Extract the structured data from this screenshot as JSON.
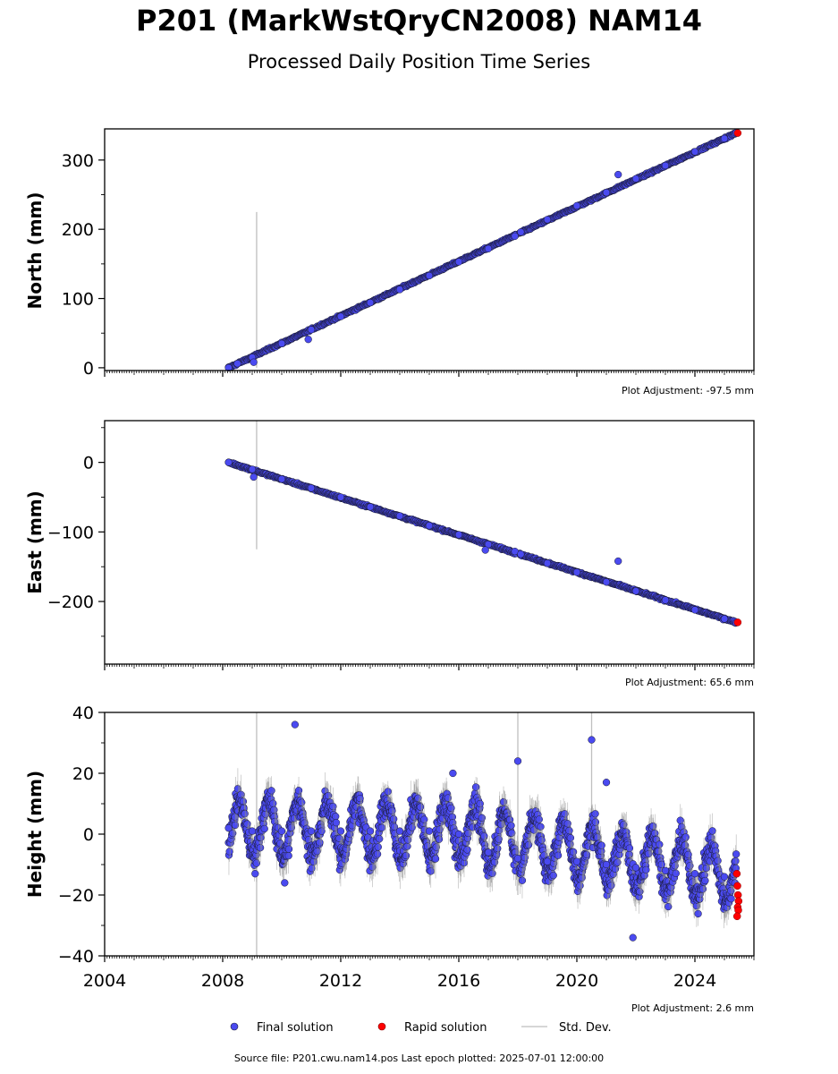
{
  "title": "P201 (MarkWstQryCN2008) NAM14",
  "subtitle": "Processed Daily Position Time Series",
  "source_line": "Source file: P201.cwu.nam14.pos  Last epoch plotted: 2025-07-01 12:00:00",
  "legend": {
    "final": "Final solution",
    "rapid": "Rapid solution",
    "std": "Std. Dev."
  },
  "colors": {
    "final": "#4a4af0",
    "rapid": "#ff0000",
    "std": "#b0b0b0",
    "marker_edge": "#1a1a2e"
  },
  "chart_data": [
    {
      "type": "scatter",
      "ylabel": "North (mm)",
      "ylim": [
        -4,
        345
      ],
      "yticks": [
        0,
        100,
        200,
        300
      ],
      "yticklabels": [
        "0",
        "100",
        "200",
        "300"
      ],
      "xlim": [
        2004.0,
        2026.0
      ],
      "adjustment": "Plot Adjustment: -97.5 mm",
      "trend": {
        "x": [
          2008.2,
          2025.4
        ],
        "y": [
          0,
          339
        ]
      },
      "series": [
        {
          "name": "Final solution",
          "x": [
            2008.2,
            2008.5,
            2009.0,
            2010.0,
            2011.0,
            2012.0,
            2013.0,
            2014.0,
            2015.0,
            2016.0,
            2017.0,
            2017.9,
            2018.1,
            2019.0,
            2020.0,
            2021.0,
            2022.0,
            2023.0,
            2024.0,
            2025.0
          ],
          "y": [
            0,
            6,
            15,
            35,
            55,
            74,
            94,
            113,
            133,
            153,
            172,
            190,
            196,
            214,
            234,
            253,
            273,
            292,
            312,
            331
          ]
        },
        {
          "name": "Rapid solution",
          "x": [
            2025.45
          ],
          "y": [
            339
          ]
        }
      ],
      "outliers": {
        "x": [
          2009.05,
          2010.9,
          2021.4
        ],
        "y": [
          8,
          41,
          279
        ]
      },
      "stddev_spikes": [
        {
          "x": 2009.15,
          "y_low": 0,
          "y_high": 225
        }
      ]
    },
    {
      "type": "scatter",
      "ylabel": "East (mm)",
      "ylim": [
        -290,
        60
      ],
      "yticks": [
        0,
        -100,
        -200
      ],
      "yticklabels": [
        "0",
        "−100",
        "−200"
      ],
      "xlim": [
        2004.0,
        2026.0
      ],
      "adjustment": "Plot Adjustment: 65.6 mm",
      "trend": {
        "x": [
          2008.2,
          2025.4
        ],
        "y": [
          0,
          -230
        ]
      },
      "series": [
        {
          "name": "Final solution",
          "x": [
            2008.2,
            2009.0,
            2010.0,
            2011.0,
            2012.0,
            2013.0,
            2014.0,
            2015.0,
            2016.0,
            2017.0,
            2017.9,
            2018.1,
            2019.0,
            2020.0,
            2021.0,
            2022.0,
            2023.0,
            2024.0,
            2025.0
          ],
          "y": [
            0,
            -10,
            -24,
            -37,
            -50,
            -64,
            -77,
            -91,
            -104,
            -118,
            -128,
            -132,
            -145,
            -158,
            -172,
            -185,
            -198,
            -212,
            -225
          ]
        },
        {
          "name": "Rapid solution",
          "x": [
            2025.45
          ],
          "y": [
            -230
          ]
        }
      ],
      "outliers": {
        "x": [
          2009.05,
          2016.9,
          2021.4
        ],
        "y": [
          -21,
          -126,
          -142
        ]
      },
      "stddev_spikes": [
        {
          "x": 2009.15,
          "y_low": -125,
          "y_high": 60
        }
      ]
    },
    {
      "type": "scatter",
      "ylabel": "Height (mm)",
      "ylim": [
        -40,
        40
      ],
      "yticks": [
        -40,
        -20,
        0,
        20,
        40
      ],
      "yticklabels": [
        "−40",
        "−20",
        "0",
        "20",
        "40"
      ],
      "xlim": [
        2004.0,
        2026.0
      ],
      "xticks": [
        2004,
        2008,
        2012,
        2016,
        2020,
        2024
      ],
      "xticklabels": [
        "2004",
        "2008",
        "2012",
        "2016",
        "2020",
        "2024"
      ],
      "adjustment": "Plot Adjustment: 2.6 mm",
      "trend": {
        "x": [
          2008.2,
          2016.0,
          2025.4
        ],
        "y": [
          2,
          1,
          -14
        ]
      },
      "seasonal_amplitude": 9,
      "series": [
        {
          "name": "Final solution",
          "x": [
            2008.2,
            2009.0,
            2010.0,
            2011.0,
            2012.0,
            2013.0,
            2014.0,
            2015.0,
            2016.0,
            2017.0,
            2018.0,
            2019.0,
            2020.0,
            2021.0,
            2022.0,
            2023.0,
            2024.0,
            2025.0
          ],
          "y": [
            2,
            1,
            1,
            1,
            1,
            1,
            1,
            1,
            0,
            -6,
            -8,
            -9,
            -9,
            -10,
            -11,
            -12,
            -13,
            -14
          ]
        },
        {
          "name": "Rapid solution",
          "x": [
            2025.42,
            2025.44,
            2025.46,
            2025.48,
            2025.45,
            2025.47,
            2025.43
          ],
          "y": [
            -13,
            -17,
            -20,
            -22,
            -24,
            -25,
            -27
          ]
        }
      ],
      "outliers": {
        "x": [
          2010.45,
          2018.0,
          2020.5,
          2009.1,
          2021.0,
          2021.9,
          2015.8,
          2010.1
        ],
        "y": [
          36,
          24,
          31,
          -13,
          17,
          -34,
          20,
          -16
        ]
      },
      "stddev_spikes": [
        {
          "x": 2009.15,
          "y_low": -40,
          "y_high": 40
        },
        {
          "x": 2018.0,
          "y_low": -20,
          "y_high": 40
        },
        {
          "x": 2020.5,
          "y_low": 0,
          "y_high": 40
        }
      ]
    }
  ]
}
